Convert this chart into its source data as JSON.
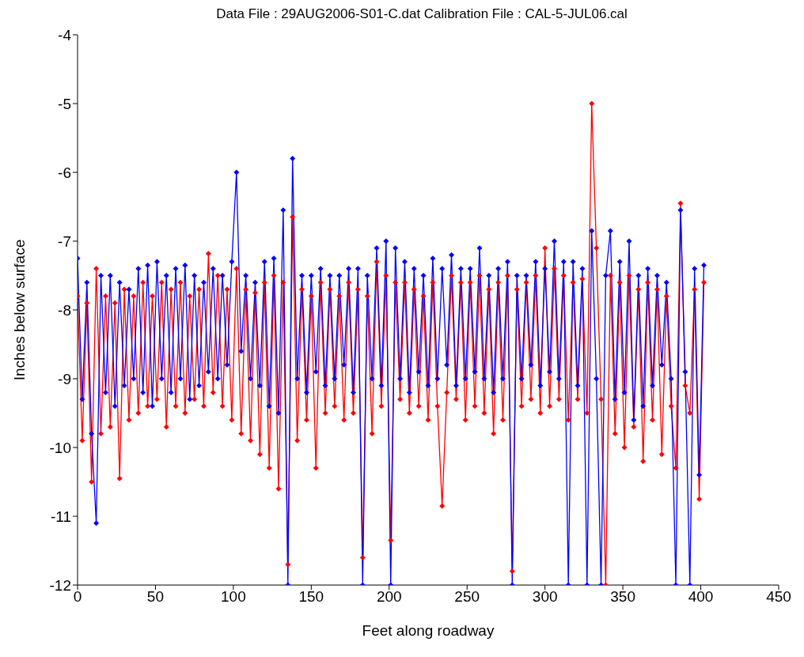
{
  "chart_data": {
    "type": "line",
    "title": "Data File : 29AUG2006-S01-C.dat  Calibration File : CAL-5-JUL06.cal",
    "xlabel": "Feet along roadway",
    "ylabel": "Inches below surface",
    "x": [
      0,
      3,
      6,
      9,
      12,
      15,
      18,
      21,
      24,
      27,
      30,
      33,
      36,
      39,
      42,
      45,
      48,
      51,
      54,
      57,
      60,
      63,
      66,
      69,
      72,
      75,
      78,
      81,
      84,
      87,
      90,
      93,
      96,
      99,
      102,
      105,
      108,
      111,
      114,
      117,
      120,
      123,
      126,
      129,
      132,
      135,
      138,
      141,
      144,
      147,
      150,
      153,
      156,
      159,
      162,
      165,
      168,
      171,
      174,
      177,
      180,
      183,
      186,
      189,
      192,
      195,
      198,
      201,
      204,
      207,
      210,
      213,
      216,
      219,
      222,
      225,
      228,
      231,
      234,
      237,
      240,
      243,
      246,
      249,
      252,
      255,
      258,
      261,
      264,
      267,
      270,
      273,
      276,
      279,
      282,
      285,
      288,
      291,
      294,
      297,
      300,
      303,
      306,
      309,
      312,
      315,
      318,
      321,
      324,
      327,
      330,
      333,
      336,
      339,
      342,
      345,
      348,
      351,
      354,
      357,
      360,
      363,
      366,
      369,
      372,
      375,
      378,
      381,
      384,
      387,
      390,
      393,
      396,
      399,
      402
    ],
    "series": [
      {
        "color": "#ff0000",
        "values": [
          -7.8,
          -9.9,
          -7.9,
          -10.5,
          -7.4,
          -9.8,
          -7.8,
          -9.7,
          -7.9,
          -10.45,
          -7.7,
          -9.6,
          -7.8,
          -9.5,
          -7.6,
          -9.4,
          -7.8,
          -9.3,
          -7.6,
          -9.7,
          -7.7,
          -9.4,
          -7.6,
          -9.5,
          -7.8,
          -9.3,
          -7.7,
          -9.4,
          -7.18,
          -9.2,
          -7.5,
          -9.4,
          -7.7,
          -9.6,
          -7.4,
          -9.8,
          -7.7,
          -9.9,
          -7.75,
          -10.1,
          -7.6,
          -10.3,
          -7.5,
          -10.6,
          -7.6,
          -11.7,
          -6.65,
          -9.9,
          -7.7,
          -9.6,
          -7.8,
          -10.3,
          -7.6,
          -9.5,
          -7.7,
          -9.4,
          -7.8,
          -9.6,
          -7.6,
          -9.5,
          -7.7,
          -11.6,
          -7.8,
          -9.8,
          -7.3,
          -9.4,
          -7.5,
          -11.35,
          -7.6,
          -9.3,
          -7.6,
          -9.5,
          -7.7,
          -9.4,
          -7.8,
          -9.6,
          -7.6,
          -9.4,
          -10.85,
          -9.2,
          -7.5,
          -9.3,
          -7.6,
          -9.6,
          -7.6,
          -9.4,
          -7.5,
          -9.5,
          -7.7,
          -9.8,
          -7.6,
          -9.6,
          -7.5,
          -11.8,
          -7.7,
          -9.4,
          -7.6,
          -9.3,
          -7.5,
          -9.5,
          -7.1,
          -9.4,
          -7.4,
          -9.3,
          -7.5,
          -9.6,
          -7.6,
          -9.3,
          -7.55,
          -9.5,
          -5.0,
          -7.1,
          -9.3,
          -12,
          -7.5,
          -9.8,
          -7.6,
          -10.0,
          -7.5,
          -9.7,
          -7.7,
          -10.2,
          -7.6,
          -9.6,
          -7.7,
          -10.1,
          -7.8,
          -9.4,
          -10.3,
          -6.45,
          -9.1,
          -9.5,
          -7.7,
          -10.75,
          -7.6
        ]
      },
      {
        "color": "#0000ff",
        "values": [
          -7.25,
          -9.3,
          -7.6,
          -9.8,
          -11.1,
          -7.5,
          -9.2,
          -7.5,
          -9.4,
          -7.6,
          -9.1,
          -7.7,
          -9.0,
          -7.4,
          -9.2,
          -7.35,
          -9.4,
          -7.3,
          -9.0,
          -7.5,
          -9.2,
          -7.4,
          -9.0,
          -7.35,
          -9.3,
          -7.5,
          -9.1,
          -7.6,
          -8.9,
          -7.4,
          -9.0,
          -7.5,
          -8.8,
          -7.3,
          -6.0,
          -8.6,
          -7.5,
          -9.0,
          -7.6,
          -9.1,
          -7.3,
          -9.4,
          -7.25,
          -9.5,
          -6.55,
          -12,
          -5.8,
          -9.0,
          -7.5,
          -9.2,
          -7.5,
          -8.9,
          -7.4,
          -9.1,
          -7.5,
          -9.0,
          -7.5,
          -8.8,
          -7.4,
          -9.2,
          -7.4,
          -12,
          -7.5,
          -9.0,
          -7.1,
          -9.1,
          -7.0,
          -12,
          -7.1,
          -9.0,
          -7.3,
          -9.2,
          -7.4,
          -8.9,
          -7.5,
          -9.1,
          -7.25,
          -9.0,
          -7.4,
          -8.8,
          -7.2,
          -9.1,
          -7.4,
          -9.0,
          -7.4,
          -8.9,
          -7.1,
          -9.0,
          -7.5,
          -9.2,
          -7.4,
          -9.0,
          -7.3,
          -12,
          -7.5,
          -9.0,
          -7.5,
          -8.8,
          -7.3,
          -9.1,
          -7.4,
          -8.9,
          -7.0,
          -9.0,
          -7.3,
          -12,
          -7.3,
          -9.1,
          -7.4,
          -12,
          -6.85,
          -9.0,
          -12,
          -7.5,
          -6.85,
          -9.3,
          -7.3,
          -9.2,
          -7.0,
          -9.6,
          -7.5,
          -9.4,
          -7.4,
          -9.1,
          -7.5,
          -8.8,
          -7.6,
          -9.0,
          -12,
          -6.55,
          -8.9,
          -12,
          -7.4,
          -10.4,
          -7.35
        ]
      }
    ],
    "xlim": [
      0,
      450
    ],
    "xticks": [
      0,
      50,
      100,
      150,
      200,
      250,
      300,
      350,
      400,
      450
    ],
    "ylim": [
      -12,
      -4
    ],
    "yticks": [
      -12,
      -11,
      -10,
      -9,
      -8,
      -7,
      -6,
      -5,
      -4
    ],
    "grid": false,
    "legend": false,
    "marker": "diamond",
    "line_style": "solid"
  }
}
